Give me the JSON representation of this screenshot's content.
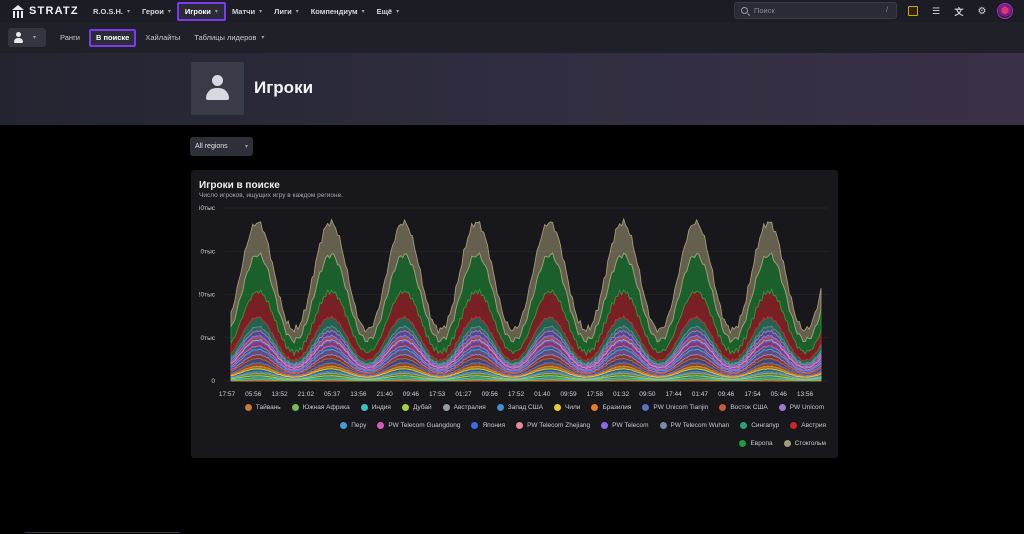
{
  "app": {
    "name": "STRATZ"
  },
  "nav": {
    "items": [
      {
        "label": "R.O.S.H.",
        "active": false
      },
      {
        "label": "Герои",
        "active": false
      },
      {
        "label": "Игроки",
        "active": true
      },
      {
        "label": "Матчи",
        "active": false
      },
      {
        "label": "Лиги",
        "active": false
      },
      {
        "label": "Компендиум",
        "active": false
      },
      {
        "label": "Ещё",
        "active": false
      }
    ]
  },
  "search": {
    "placeholder": "Поиск",
    "shortcut": "/"
  },
  "topbar_icons": [
    "notepad-icon",
    "checklist-icon",
    "translate-icon",
    "gear-icon",
    "profile-avatar-icon"
  ],
  "subnav": {
    "items": [
      {
        "label": "Ранги",
        "active": false
      },
      {
        "label": "В поиске",
        "active": true
      },
      {
        "label": "Хайлайты",
        "active": false
      },
      {
        "label": "Таблицы лидеров",
        "active": false,
        "dropdown": true
      }
    ]
  },
  "page": {
    "title": "Игроки"
  },
  "region_filter": {
    "value": "All regions"
  },
  "chart_card": {
    "title": "Игроки в поиске",
    "subtitle": "Число игроков, ищущих игру в каждом регионе."
  },
  "chart_data": {
    "type": "area",
    "stacked": true,
    "y_tick_labels": [
      "0",
      "0тыс",
      "!0тыс",
      "0тыс",
      "i0тыс"
    ],
    "yticks": [
      0,
      10000,
      20000,
      30000,
      40000
    ],
    "ylim": [
      0,
      40000
    ],
    "x_tick_labels": [
      "17:57",
      "05:56",
      "13:52",
      "21:02",
      "05:37",
      "13:56",
      "21:40",
      "09:46",
      "17:53",
      "01:27",
      "09:56",
      "17:52",
      "01:40",
      "09:59",
      "17:58",
      "01:32",
      "09:50",
      "17:44",
      "01:47",
      "09:46",
      "17:54",
      "05:46",
      "13:56"
    ],
    "grid": true,
    "legend_position": "bottom",
    "series": [
      {
        "name": "Тайвань",
        "color": "#c87a3c",
        "peak": 300
      },
      {
        "name": "Южная Африка",
        "color": "#7ab85a",
        "peak": 400
      },
      {
        "name": "Индия",
        "color": "#3fc2c2",
        "peak": 500
      },
      {
        "name": "Дубай",
        "color": "#a8d03c",
        "peak": 600
      },
      {
        "name": "Австралия",
        "color": "#8fa0a6",
        "peak": 400
      },
      {
        "name": "Запад США",
        "color": "#3f8fc8",
        "peak": 600
      },
      {
        "name": "Чили",
        "color": "#e8c93a",
        "peak": 600
      },
      {
        "name": "Бразилия",
        "color": "#e87a28",
        "peak": 800
      },
      {
        "name": "PW Unicom Tianjin",
        "color": "#5a70c8",
        "peak": 1000
      },
      {
        "name": "Восток США",
        "color": "#c85a3a",
        "peak": 900
      },
      {
        "name": "PW Unicom",
        "color": "#9a7ad0",
        "peak": 1200
      },
      {
        "name": "Перу",
        "color": "#4a9ad8",
        "peak": 800
      },
      {
        "name": "PW Telecom Guangdong",
        "color": "#d85ab8",
        "peak": 1100
      },
      {
        "name": "Япония",
        "color": "#3a6ae8",
        "peak": 300
      },
      {
        "name": "PW Telecom Zhejiang",
        "color": "#e88a9a",
        "peak": 1000
      },
      {
        "name": "PW Telecom",
        "color": "#8a6aea",
        "peak": 1100
      },
      {
        "name": "PW Telecom Wuhan",
        "color": "#7a8aa6",
        "peak": 1000
      },
      {
        "name": "Сингапур",
        "color": "#2f9e78",
        "peak": 2200
      },
      {
        "name": "Австрия",
        "color": "#c8282a",
        "peak": 6000
      },
      {
        "name": "Европа",
        "color": "#1f9a3c",
        "peak": 8500
      },
      {
        "name": "Стокгольм",
        "color": "#a59a78",
        "peak": 7500
      }
    ]
  }
}
